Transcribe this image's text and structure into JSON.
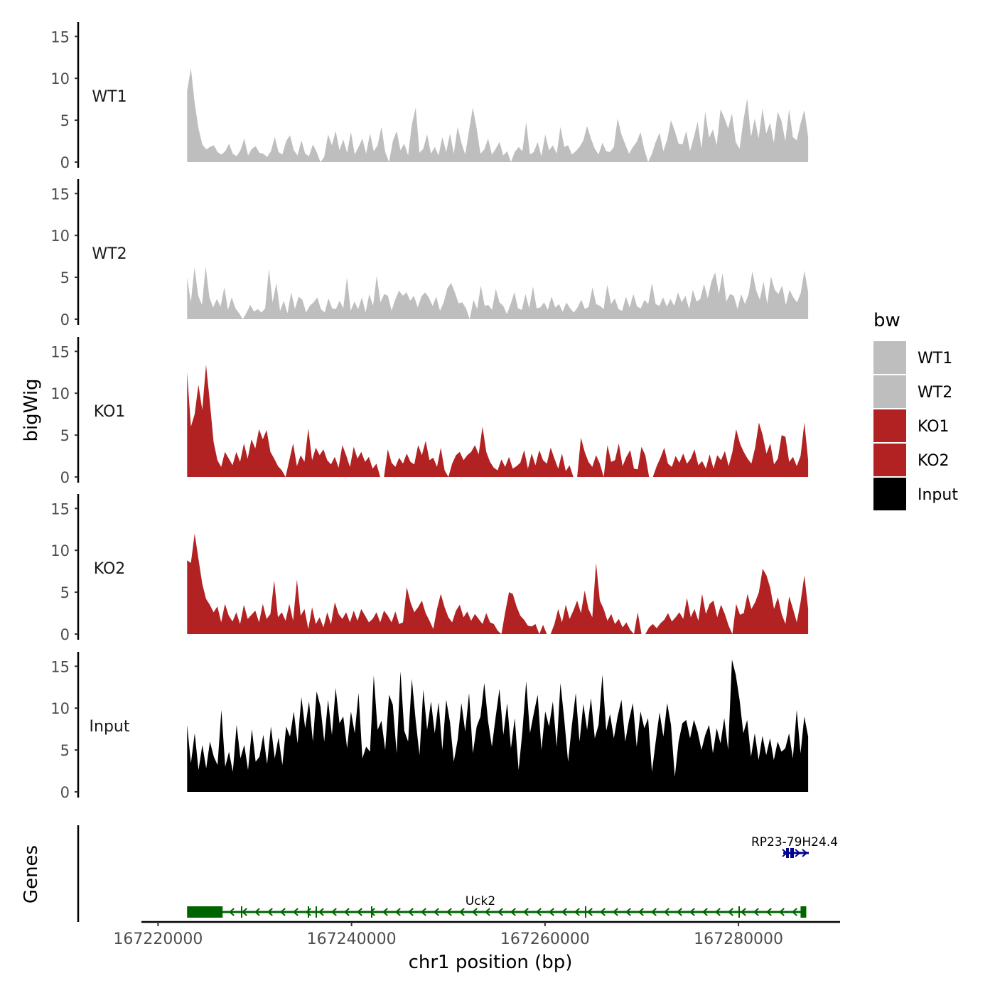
{
  "chart_data": {
    "type": "area",
    "title": "",
    "ylabel": "bigWig",
    "xlabel": "chr1 position (bp)",
    "xlim": [
      167218500,
      167290500
    ],
    "ylim": [
      0,
      16
    ],
    "yticks": [
      0,
      5,
      10,
      15
    ],
    "xticks": [
      167220000,
      167240000,
      167260000,
      167280000
    ],
    "data_range": [
      167223000,
      167287200
    ],
    "tracks": [
      {
        "name": "WT1",
        "color": "#BEBEBE",
        "values": [
          8.5,
          11.2,
          7.0,
          4.0,
          2.1,
          1.5,
          1.8,
          2.0,
          1.2,
          0.9,
          1.3,
          2.2,
          1.0,
          0.7,
          1.4,
          2.8,
          0.8,
          1.6,
          1.9,
          1.1,
          1.0,
          0.6,
          1.3,
          3.0,
          1.2,
          0.9,
          2.5,
          3.2,
          1.4,
          0.8,
          2.6,
          1.0,
          0.7,
          2.1,
          1.2,
          0.0,
          0.6,
          3.3,
          2.0,
          3.7,
          1.4,
          2.7,
          1.1,
          3.6,
          0.9,
          1.8,
          2.8,
          1.0,
          3.4,
          1.3,
          2.0,
          4.2,
          1.2,
          0.0,
          2.5,
          3.7,
          1.4,
          2.2,
          0.8,
          4.5,
          6.5,
          1.1,
          1.6,
          3.3,
          1.0,
          1.8,
          0.8,
          3.0,
          1.2,
          3.4,
          1.0,
          4.2,
          2.3,
          0.9,
          3.8,
          6.5,
          4.0,
          1.0,
          1.5,
          2.8,
          0.9,
          1.6,
          2.4,
          0.8,
          1.3,
          0.0,
          1.2,
          1.8,
          1.3,
          4.8,
          0.9,
          1.2,
          2.4,
          0.7,
          3.3,
          1.4,
          2.0,
          1.0,
          4.2,
          1.8,
          2.0,
          0.9,
          1.3,
          1.8,
          2.6,
          4.3,
          2.8,
          1.6,
          0.9,
          2.3,
          1.3,
          1.2,
          1.8,
          5.2,
          3.3,
          2.1,
          1.0,
          1.8,
          2.4,
          3.6,
          1.5,
          0.0,
          1.0,
          2.4,
          3.5,
          1.3,
          2.7,
          5.0,
          3.7,
          2.2,
          2.1,
          3.7,
          1.3,
          3.0,
          4.8,
          1.6,
          6.0,
          2.9,
          3.9,
          2.0,
          6.3,
          5.3,
          4.0,
          5.8,
          2.4,
          1.6,
          4.9,
          7.6,
          3.0,
          5.2,
          2.8,
          6.4,
          3.4,
          4.7,
          2.3,
          6.0,
          4.9,
          2.5,
          6.3,
          3.0,
          2.6,
          4.6,
          6.2,
          3.0
        ]
      },
      {
        "name": "WT2",
        "color": "#BEBEBE",
        "values": [
          5.0,
          2.0,
          6.2,
          2.8,
          1.7,
          6.3,
          2.6,
          1.4,
          2.4,
          1.5,
          3.8,
          1.1,
          2.6,
          1.3,
          0.7,
          0.0,
          0.8,
          1.7,
          0.9,
          1.2,
          0.8,
          1.3,
          6.0,
          2.0,
          4.3,
          1.0,
          2.2,
          0.7,
          3.2,
          1.2,
          2.7,
          2.3,
          0.8,
          1.6,
          2.0,
          2.6,
          1.2,
          0.8,
          2.5,
          1.3,
          1.2,
          2.2,
          1.3,
          5.0,
          1.0,
          2.1,
          1.2,
          2.6,
          0.8,
          3.0,
          1.6,
          5.2,
          2.0,
          3.0,
          2.8,
          1.0,
          2.4,
          3.4,
          2.8,
          3.2,
          2.2,
          2.8,
          1.4,
          2.7,
          3.2,
          2.6,
          1.6,
          2.7,
          1.0,
          2.0,
          3.7,
          4.3,
          3.2,
          1.9,
          2.0,
          1.3,
          0.0,
          2.3,
          1.2,
          4.0,
          1.6,
          1.7,
          1.1,
          3.6,
          2.0,
          1.6,
          0.6,
          1.8,
          3.2,
          1.3,
          1.1,
          3.0,
          1.3,
          3.9,
          1.3,
          1.4,
          2.0,
          1.1,
          2.7,
          1.4,
          1.8,
          0.9,
          2.0,
          1.3,
          0.8,
          1.4,
          2.3,
          1.2,
          1.5,
          3.8,
          1.8,
          1.6,
          1.2,
          4.1,
          1.8,
          2.5,
          1.2,
          1.0,
          2.7,
          1.4,
          3.0,
          1.5,
          1.3,
          2.3,
          1.8,
          4.3,
          1.8,
          1.6,
          2.6,
          1.5,
          2.4,
          1.6,
          3.2,
          2.0,
          2.8,
          1.2,
          3.5,
          2.1,
          2.4,
          4.2,
          2.5,
          4.5,
          5.6,
          3.0,
          5.5,
          2.1,
          3.0,
          2.8,
          1.2,
          3.0,
          1.8,
          3.0,
          5.7,
          3.5,
          2.3,
          4.5,
          1.8,
          5.1,
          3.5,
          3.0,
          4.0,
          1.7,
          3.5,
          2.6,
          2.0,
          3.1,
          5.8,
          3.2
        ]
      },
      {
        "name": "KO1",
        "color": "#B22222",
        "values": [
          12.5,
          6.0,
          7.5,
          11.0,
          8.0,
          13.4,
          9.0,
          4.2,
          2.0,
          1.2,
          3.0,
          2.2,
          1.4,
          3.0,
          1.8,
          4.0,
          2.2,
          4.5,
          3.4,
          5.7,
          4.5,
          5.6,
          3.0,
          2.2,
          1.3,
          0.8,
          0.0,
          2.0,
          4.0,
          1.3,
          2.6,
          1.8,
          5.8,
          2.0,
          3.5,
          2.6,
          3.3,
          2.0,
          1.5,
          2.4,
          1.1,
          3.8,
          2.6,
          1.2,
          3.6,
          2.2,
          3.0,
          1.8,
          2.4,
          1.0,
          1.6,
          0.0,
          0.0,
          3.3,
          1.7,
          1.2,
          2.3,
          1.6,
          2.8,
          1.8,
          1.5,
          3.8,
          2.6,
          4.3,
          2.0,
          2.3,
          1.2,
          3.5,
          0.8,
          0.0,
          1.6,
          2.6,
          3.0,
          2.0,
          2.6,
          3.0,
          3.8,
          2.7,
          6.0,
          3.0,
          1.8,
          1.1,
          0.8,
          2.1,
          1.2,
          2.4,
          1.0,
          1.3,
          1.7,
          3.2,
          1.0,
          2.8,
          1.4,
          3.2,
          2.0,
          1.6,
          3.5,
          2.2,
          1.0,
          2.8,
          0.7,
          1.4,
          0.0,
          0.0,
          4.7,
          3.0,
          1.8,
          1.2,
          2.6,
          1.6,
          0.0,
          3.8,
          1.8,
          2.0,
          4.0,
          1.3,
          2.4,
          3.2,
          1.0,
          0.9,
          3.6,
          2.6,
          0.0,
          0.0,
          1.3,
          2.3,
          3.5,
          1.6,
          1.2,
          2.5,
          1.7,
          2.8,
          1.6,
          2.2,
          3.3,
          1.4,
          1.9,
          1.0,
          2.7,
          1.0,
          2.6,
          2.0,
          3.1,
          1.3,
          3.0,
          5.7,
          4.0,
          3.0,
          2.2,
          1.6,
          3.5,
          6.5,
          5.0,
          2.8,
          4.0,
          1.5,
          2.2,
          5.0,
          4.8,
          1.8,
          2.4,
          1.3,
          2.5,
          6.5,
          2.0
        ]
      },
      {
        "name": "KO2",
        "color": "#B22222",
        "values": [
          8.8,
          8.5,
          12.0,
          9.0,
          6.0,
          4.2,
          3.5,
          2.6,
          3.3,
          1.4,
          3.6,
          2.2,
          1.5,
          2.6,
          1.2,
          3.5,
          1.8,
          2.3,
          2.8,
          1.4,
          3.6,
          1.8,
          2.4,
          6.4,
          2.0,
          2.6,
          1.6,
          3.6,
          1.6,
          6.5,
          2.2,
          3.0,
          0.6,
          3.2,
          1.2,
          2.0,
          0.8,
          2.6,
          1.2,
          3.8,
          2.4,
          1.8,
          2.6,
          1.4,
          2.8,
          1.6,
          3.0,
          2.2,
          1.4,
          1.8,
          2.6,
          1.4,
          2.8,
          2.2,
          1.4,
          2.7,
          1.2,
          1.4,
          5.6,
          3.8,
          2.6,
          3.2,
          4.0,
          2.5,
          1.6,
          0.6,
          3.0,
          4.8,
          3.2,
          2.0,
          1.4,
          2.8,
          3.5,
          2.0,
          2.7,
          1.6,
          2.4,
          1.8,
          1.2,
          2.5,
          1.4,
          1.2,
          0.4,
          0.0,
          2.6,
          5.0,
          4.8,
          3.3,
          2.2,
          1.7,
          1.0,
          0.9,
          1.2,
          0.0,
          1.1,
          0.0,
          0.0,
          1.2,
          3.0,
          1.4,
          3.5,
          1.8,
          2.8,
          4.0,
          2.5,
          5.2,
          3.0,
          2.0,
          8.5,
          4.0,
          3.0,
          1.6,
          2.4,
          1.2,
          1.8,
          0.8,
          1.4,
          0.5,
          0.0,
          2.6,
          0.0,
          0.0,
          0.8,
          1.2,
          0.7,
          1.3,
          1.7,
          2.5,
          1.5,
          2.0,
          2.6,
          1.8,
          4.3,
          2.0,
          3.0,
          1.6,
          4.8,
          2.4,
          3.6,
          4.0,
          2.0,
          3.5,
          2.4,
          1.0,
          0.0,
          3.6,
          2.3,
          2.5,
          4.8,
          3.0,
          3.8,
          5.0,
          7.8,
          7.0,
          5.5,
          3.0,
          4.4,
          2.4,
          1.2,
          4.5,
          3.0,
          1.4,
          3.8,
          7.0,
          3.0
        ]
      },
      {
        "name": "Input",
        "color": "#000000",
        "values": [
          8.0,
          3.4,
          7.0,
          2.6,
          5.6,
          2.8,
          6.0,
          4.2,
          3.2,
          9.8,
          3.0,
          4.8,
          2.4,
          8.0,
          4.0,
          5.6,
          2.6,
          7.5,
          3.6,
          4.2,
          6.8,
          3.3,
          7.8,
          4.0,
          6.5,
          3.2,
          7.8,
          6.6,
          9.6,
          5.8,
          11.3,
          7.6,
          10.8,
          6.0,
          12.0,
          10.2,
          6.0,
          11.0,
          6.8,
          12.4,
          8.2,
          9.0,
          5.2,
          9.6,
          7.0,
          11.8,
          4.0,
          5.4,
          4.8,
          13.9,
          7.4,
          8.5,
          5.0,
          11.6,
          10.4,
          4.6,
          14.4,
          7.3,
          6.0,
          13.5,
          8.5,
          4.4,
          12.2,
          7.4,
          10.8,
          7.0,
          10.7,
          5.0,
          11.0,
          8.3,
          3.6,
          6.2,
          10.6,
          7.2,
          11.8,
          4.6,
          7.8,
          9.0,
          13.0,
          8.4,
          5.4,
          9.0,
          12.3,
          6.8,
          10.6,
          5.2,
          8.8,
          2.6,
          7.2,
          13.2,
          7.0,
          9.4,
          11.6,
          5.0,
          9.6,
          7.8,
          10.8,
          5.4,
          13.0,
          8.6,
          3.6,
          8.0,
          11.8,
          6.0,
          10.5,
          7.4,
          11.2,
          6.4,
          8.0,
          14.0,
          7.3,
          9.3,
          6.4,
          9.0,
          11.0,
          6.0,
          8.6,
          10.6,
          5.4,
          9.6,
          7.6,
          8.8,
          2.4,
          6.0,
          9.5,
          6.6,
          10.6,
          8.0,
          1.8,
          6.0,
          8.2,
          8.6,
          6.4,
          8.6,
          7.2,
          5.0,
          6.8,
          8.0,
          4.6,
          7.6,
          5.8,
          8.8,
          5.0,
          15.8,
          14.0,
          11.0,
          7.0,
          8.6,
          4.2,
          7.0,
          3.8,
          6.7,
          4.4,
          6.4,
          3.8,
          6.0,
          4.8,
          5.2,
          7.0,
          4.0,
          9.8,
          4.6,
          9.0,
          6.6
        ]
      }
    ],
    "genes": [
      {
        "name": "Uck2",
        "strand": "-",
        "color": "#006400",
        "start": 167223000,
        "end": 167287300
      },
      {
        "name": "RP23-79H24.4",
        "strand": "+",
        "color": "#00008B",
        "start": 167285000,
        "end": 167287500
      }
    ],
    "genes_axis_label": "Genes",
    "legend": {
      "title": "bw",
      "position": "right",
      "entries": [
        {
          "label": "WT1",
          "color": "#BEBEBE"
        },
        {
          "label": "WT2",
          "color": "#BEBEBE"
        },
        {
          "label": "KO1",
          "color": "#B22222"
        },
        {
          "label": "KO2",
          "color": "#B22222"
        },
        {
          "label": "Input",
          "color": "#000000"
        }
      ]
    }
  }
}
